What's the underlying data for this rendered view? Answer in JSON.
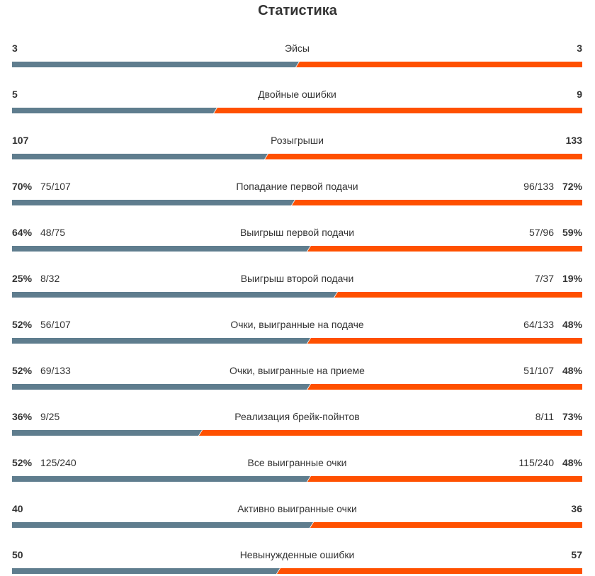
{
  "title": "Статистика",
  "colors": {
    "left_bar": "#5f7d8e",
    "right_bar": "#ff5000",
    "text": "#333333"
  },
  "stats": [
    {
      "name": "Эйсы",
      "left_value": "3",
      "right_value": "3",
      "left_share": 0.5
    },
    {
      "name": "Двойные ошибки",
      "left_value": "5",
      "right_value": "9",
      "left_share": 0.357
    },
    {
      "name": "Розыгрыши",
      "left_value": "107",
      "right_value": "133",
      "left_share": 0.446
    },
    {
      "name": "Попадание первой подачи",
      "left_value": "70%",
      "left_fraction": "75/107",
      "right_value": "72%",
      "right_fraction": "96/133",
      "left_share": 0.493
    },
    {
      "name": "Выигрыш первой подачи",
      "left_value": "64%",
      "left_fraction": "48/75",
      "right_value": "59%",
      "right_fraction": "57/96",
      "left_share": 0.52
    },
    {
      "name": "Выигрыш второй подачи",
      "left_value": "25%",
      "left_fraction": "8/32",
      "right_value": "19%",
      "right_fraction": "7/37",
      "left_share": 0.568
    },
    {
      "name": "Очки, выигранные на подаче",
      "left_value": "52%",
      "left_fraction": "56/107",
      "right_value": "48%",
      "right_fraction": "64/133",
      "left_share": 0.52
    },
    {
      "name": "Очки, выигранные на приеме",
      "left_value": "52%",
      "left_fraction": "69/133",
      "right_value": "48%",
      "right_fraction": "51/107",
      "left_share": 0.52
    },
    {
      "name": "Реализация брейк-пойнтов",
      "left_value": "36%",
      "left_fraction": "9/25",
      "right_value": "73%",
      "right_fraction": "8/11",
      "left_share": 0.33
    },
    {
      "name": "Все выигранные очки",
      "left_value": "52%",
      "left_fraction": "125/240",
      "right_value": "48%",
      "right_fraction": "115/240",
      "left_share": 0.52
    },
    {
      "name": "Активно выигранные очки",
      "left_value": "40",
      "right_value": "36",
      "left_share": 0.526
    },
    {
      "name": "Невынужденные ошибки",
      "left_value": "50",
      "right_value": "57",
      "left_share": 0.467
    }
  ]
}
